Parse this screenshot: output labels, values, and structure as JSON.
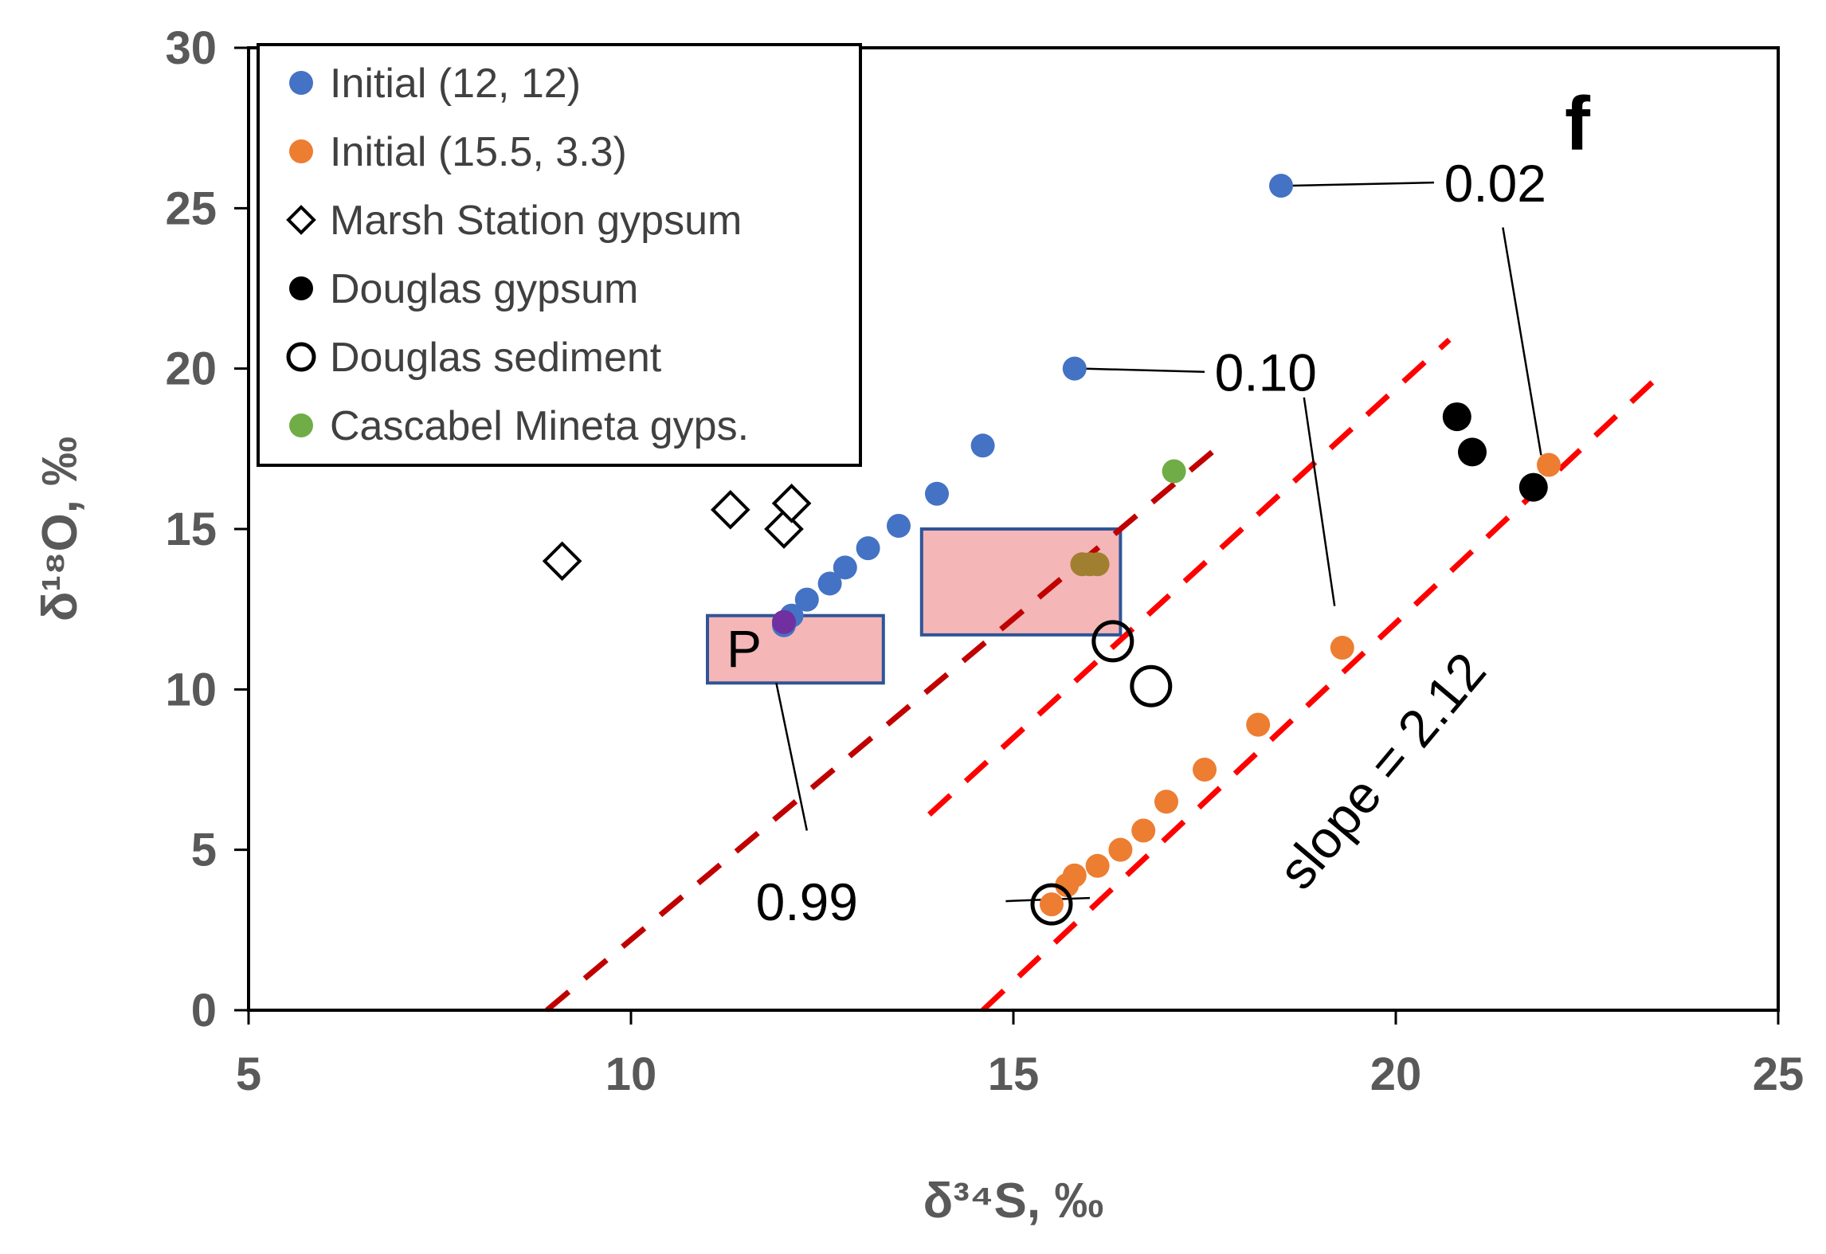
{
  "chart_data": {
    "type": "scatter",
    "panel_label": "f",
    "xlabel": "δ³⁴S, ‰",
    "ylabel": "δ¹⁸O, ‰",
    "xlim": [
      5,
      25
    ],
    "ylim": [
      0,
      30
    ],
    "xticks": [
      5,
      10,
      15,
      20,
      25
    ],
    "yticks": [
      0,
      5,
      10,
      15,
      20,
      25,
      30
    ],
    "grid": false,
    "legend_position": "top-left",
    "series": [
      {
        "name": "Initial (12, 12)",
        "marker": "filled-circle",
        "color": "#4472C4",
        "points": [
          [
            12.0,
            12.0
          ],
          [
            12.1,
            12.3
          ],
          [
            12.3,
            12.8
          ],
          [
            12.6,
            13.3
          ],
          [
            12.8,
            13.8
          ],
          [
            13.1,
            14.4
          ],
          [
            13.5,
            15.1
          ],
          [
            14.0,
            16.1
          ],
          [
            14.6,
            17.6
          ],
          [
            15.8,
            20.0
          ],
          [
            18.5,
            25.7
          ]
        ]
      },
      {
        "name": "Initial (15.5, 3.3)",
        "marker": "filled-circle",
        "color": "#ED7D31",
        "points": [
          [
            15.5,
            3.3
          ],
          [
            15.7,
            3.9
          ],
          [
            15.8,
            4.2
          ],
          [
            16.1,
            4.5
          ],
          [
            16.4,
            5.0
          ],
          [
            16.7,
            5.6
          ],
          [
            17.0,
            6.5
          ],
          [
            17.5,
            7.5
          ],
          [
            18.2,
            8.9
          ],
          [
            19.3,
            11.3
          ],
          [
            22.0,
            17.0
          ]
        ]
      },
      {
        "name": "Marsh Station gypsum",
        "marker": "open-diamond",
        "color": "#000000",
        "points": [
          [
            9.1,
            14.0
          ],
          [
            11.3,
            15.6
          ],
          [
            12.0,
            15.0
          ],
          [
            12.1,
            15.8
          ]
        ]
      },
      {
        "name": "Douglas gypsum",
        "marker": "filled-circle",
        "color": "#000000",
        "points": [
          [
            20.8,
            18.5
          ],
          [
            21.0,
            17.4
          ],
          [
            21.8,
            16.3
          ]
        ]
      },
      {
        "name": "Douglas sediment",
        "marker": "open-circle",
        "color": "#000000",
        "points": [
          [
            16.3,
            11.5
          ],
          [
            16.8,
            10.1
          ],
          [
            15.5,
            3.3
          ]
        ]
      },
      {
        "name": "Cascabel Mineta gyps.",
        "marker": "filled-circle",
        "color": "#70AD47",
        "points": [
          [
            17.1,
            16.8
          ]
        ]
      }
    ],
    "extra_points": [
      {
        "color": "#7030A0",
        "points": [
          [
            12.0,
            12.1
          ]
        ]
      },
      {
        "color": "#A08030",
        "points": [
          [
            15.9,
            13.9
          ],
          [
            16.0,
            13.9
          ],
          [
            16.1,
            13.9
          ]
        ]
      }
    ],
    "reference_lines": [
      {
        "color": "#C00000",
        "from": [
          8.9,
          0.0
        ],
        "to": [
          17.8,
          17.8
        ]
      },
      {
        "color": "#FF0000",
        "from": [
          13.9,
          6.1
        ],
        "to": [
          20.7,
          20.9
        ]
      },
      {
        "color": "#FF0000",
        "from": [
          14.6,
          0.0
        ],
        "to": [
          23.5,
          19.9
        ]
      }
    ],
    "boxes": [
      {
        "label": "P",
        "x_range": [
          11.0,
          13.3
        ],
        "y_range": [
          10.2,
          12.3
        ]
      },
      {
        "label": "",
        "x_range": [
          13.8,
          16.4
        ],
        "y_range": [
          11.7,
          15.0
        ]
      }
    ],
    "annotations": [
      {
        "text": "0.02",
        "at": [
          21.3,
          25.8
        ],
        "leader": [
          [
            18.6,
            25.7
          ],
          [
            20.5,
            25.8
          ]
        ]
      },
      {
        "text": "0.10",
        "at": [
          18.3,
          19.9
        ],
        "leader": [
          [
            15.9,
            20.0
          ],
          [
            17.5,
            19.9
          ]
        ]
      },
      {
        "text": "0.99",
        "at": [
          12.3,
          3.4
        ],
        "leader": [
          [
            14.9,
            3.4
          ],
          [
            16.0,
            3.5
          ]
        ]
      }
    ],
    "connector_lines": [
      [
        [
          21.4,
          24.4
        ],
        [
          21.9,
          17.3
        ]
      ],
      [
        [
          18.8,
          19.1
        ],
        [
          19.2,
          12.6
        ]
      ],
      [
        [
          11.9,
          10.2
        ],
        [
          12.3,
          5.6
        ]
      ]
    ],
    "slope_label": {
      "text": "slope = 2.12",
      "at": [
        20.0,
        7.1
      ],
      "angle_deg": -50
    }
  }
}
